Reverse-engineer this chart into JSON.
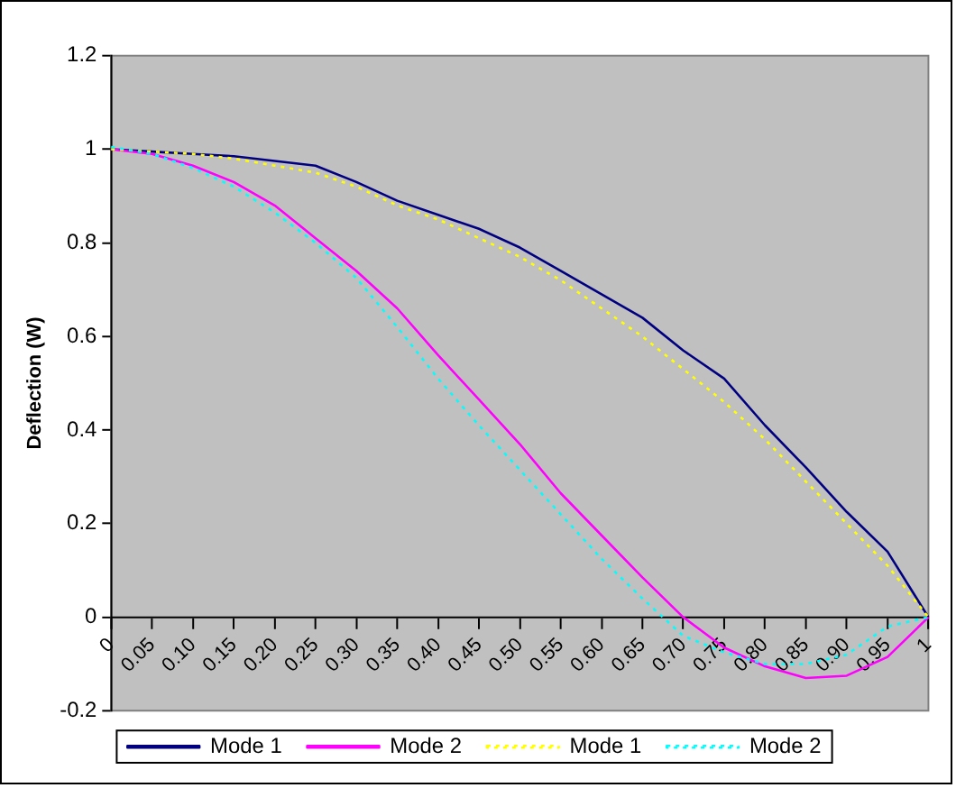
{
  "chart_data": {
    "type": "line",
    "ylabel": "Deflection (W)",
    "categories": [
      "0",
      "0.05",
      "0.10",
      "0.15",
      "0.20",
      "0.25",
      "0.30",
      "0.35",
      "0.40",
      "0.45",
      "0.50",
      "0.55",
      "0.60",
      "0.65",
      "0.70",
      "0.75",
      "0.80",
      "0.85",
      "0.90",
      "0.95",
      "1"
    ],
    "series": [
      {
        "name": "Mode 1",
        "color": "#000080",
        "line_style": "solid",
        "values": [
          1,
          0.995,
          0.99,
          0.985,
          0.975,
          0.965,
          0.93,
          0.89,
          0.86,
          0.83,
          0.79,
          0.74,
          0.69,
          0.64,
          0.57,
          0.51,
          0.41,
          0.32,
          0.225,
          0.14,
          0
        ]
      },
      {
        "name": "Mode 2",
        "color": "#ff00ff",
        "line_style": "solid",
        "values": [
          1,
          0.99,
          0.965,
          0.93,
          0.88,
          0.81,
          0.74,
          0.66,
          0.56,
          0.465,
          0.37,
          0.265,
          0.175,
          0.085,
          0,
          -0.065,
          -0.105,
          -0.13,
          -0.125,
          -0.085,
          0
        ]
      },
      {
        "name": "Mode 1",
        "color": "#ffff00",
        "line_style": "dotted",
        "values": [
          1,
          0.995,
          0.99,
          0.98,
          0.965,
          0.95,
          0.92,
          0.88,
          0.85,
          0.81,
          0.77,
          0.72,
          0.66,
          0.6,
          0.53,
          0.46,
          0.38,
          0.29,
          0.2,
          0.11,
          0
        ]
      },
      {
        "name": "Mode 2",
        "color": "#00ffff",
        "line_style": "dotted",
        "values": [
          1.005,
          0.99,
          0.96,
          0.92,
          0.865,
          0.8,
          0.725,
          0.62,
          0.51,
          0.41,
          0.315,
          0.22,
          0.125,
          0.04,
          -0.04,
          -0.075,
          -0.1,
          -0.1,
          -0.08,
          -0.02,
          0
        ]
      }
    ],
    "ylim": [
      -0.2,
      1.2
    ],
    "yticks": [
      -0.2,
      0,
      0.2,
      0.4,
      0.6,
      0.8,
      1,
      1.2
    ],
    "legend": "bottom"
  }
}
